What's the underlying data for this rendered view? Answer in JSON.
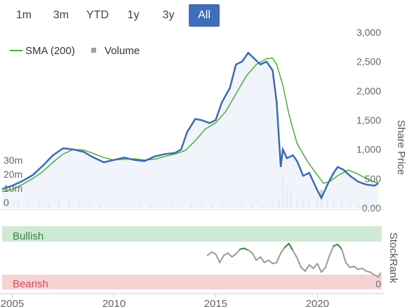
{
  "range_selector": {
    "buttons": [
      {
        "label": "1m",
        "active": false
      },
      {
        "label": "3m",
        "active": false
      },
      {
        "label": "YTD",
        "active": false
      },
      {
        "label": "1y",
        "active": false
      },
      {
        "label": "3y",
        "active": false
      },
      {
        "label": "All",
        "active": true
      }
    ]
  },
  "colors": {
    "price_line": "#3d6bb3",
    "price_fill": "#eef2fa",
    "sma_line": "#4caf3a",
    "volume_bar": "#c8c8c8",
    "bullish_band": "#cfe9d4",
    "bearish_band": "#f5d3d3",
    "rank_line": "#9a9a9a",
    "rank_bullish": "#2e8b3a",
    "accent": "#3f6fb8"
  },
  "chart_data": [
    {
      "type": "line",
      "legend": [
        {
          "name": "SMA (200)",
          "icon": "line-swatch"
        },
        {
          "name": "Volume",
          "icon": "square-swatch"
        }
      ],
      "ylabel": "Share Price",
      "y_right_ticks": [
        "3,000",
        "2,500",
        "2,000",
        "1,500",
        "1,000",
        "500",
        "0.00"
      ],
      "y_right_tick_values": [
        3000,
        2500,
        2000,
        1500,
        1000,
        500,
        0
      ],
      "y_left_ticks": [
        "30m",
        "20m",
        "10m",
        "0"
      ],
      "y_left_tick_values": [
        30,
        20,
        10,
        0
      ],
      "ylim": [
        0,
        3000
      ],
      "volume_ylim": [
        0,
        60
      ],
      "xlim": [
        2004.5,
        2023.2
      ],
      "x_ticks": [
        "2005",
        "2010",
        "2015",
        "2020"
      ],
      "x_tick_values": [
        2005,
        2010,
        2015,
        2020
      ],
      "series": [
        {
          "name": "Price",
          "x": [
            2004.5,
            2005.0,
            2005.5,
            2006.0,
            2006.5,
            2007.0,
            2007.5,
            2008.0,
            2008.5,
            2009.0,
            2009.5,
            2010.0,
            2010.5,
            2011.0,
            2011.5,
            2012.0,
            2012.5,
            2013.0,
            2013.3,
            2013.6,
            2014.0,
            2014.3,
            2014.7,
            2015.0,
            2015.3,
            2015.7,
            2016.0,
            2016.3,
            2016.6,
            2016.9,
            2017.2,
            2017.5,
            2017.8,
            2018.0,
            2018.2,
            2018.3,
            2018.5,
            2018.8,
            2019.0,
            2019.3,
            2019.6,
            2019.8,
            2020.0,
            2020.2,
            2020.5,
            2020.8,
            2021.0,
            2021.3,
            2021.6,
            2022.0,
            2022.4,
            2022.8,
            2023.0
          ],
          "y": [
            320,
            380,
            460,
            560,
            720,
            900,
            1020,
            1000,
            960,
            860,
            780,
            820,
            860,
            820,
            800,
            880,
            920,
            940,
            1000,
            1300,
            1520,
            1500,
            1450,
            1500,
            1800,
            2050,
            2450,
            2500,
            2650,
            2550,
            2450,
            2500,
            2350,
            1800,
            700,
            1000,
            850,
            900,
            800,
            550,
            600,
            450,
            300,
            170,
            400,
            600,
            700,
            650,
            550,
            450,
            400,
            380,
            420
          ]
        },
        {
          "name": "SMA (200)",
          "x": [
            2004.5,
            2005.0,
            2005.5,
            2006.0,
            2006.5,
            2007.0,
            2007.5,
            2008.0,
            2008.5,
            2009.0,
            2009.5,
            2010.0,
            2010.5,
            2011.0,
            2011.5,
            2012.0,
            2012.5,
            2013.0,
            2013.5,
            2014.0,
            2014.5,
            2015.0,
            2015.5,
            2016.0,
            2016.5,
            2017.0,
            2017.5,
            2017.8,
            2018.0,
            2018.3,
            2018.6,
            2019.0,
            2019.5,
            2020.0,
            2020.3,
            2020.6,
            2021.0,
            2021.5,
            2022.0,
            2022.5,
            2023.0
          ],
          "y": [
            280,
            320,
            400,
            500,
            620,
            780,
            920,
            1000,
            990,
            930,
            860,
            820,
            830,
            840,
            820,
            830,
            880,
            920,
            980,
            1150,
            1350,
            1450,
            1650,
            1950,
            2250,
            2450,
            2550,
            2560,
            2450,
            2100,
            1600,
            1100,
            800,
            560,
            420,
            450,
            550,
            650,
            580,
            480,
            420
          ]
        },
        {
          "name": "Volume",
          "type": "bar",
          "x": [
            2004.8,
            2005.3,
            2005.8,
            2006.3,
            2006.8,
            2007.3,
            2007.8,
            2008.3,
            2008.8,
            2009.3,
            2009.8,
            2010.3,
            2010.8,
            2011.3,
            2011.8,
            2012.3,
            2012.8,
            2013.3,
            2013.8,
            2014.3,
            2014.8,
            2015.3,
            2015.8,
            2016.3,
            2016.8,
            2017.3,
            2017.8,
            2018.1,
            2018.3,
            2018.5,
            2018.7,
            2019.0,
            2019.3,
            2019.6,
            2020.0,
            2020.2,
            2020.5,
            2020.8,
            2021.2,
            2021.6,
            2022.0,
            2022.5,
            2022.9
          ],
          "y": [
            4,
            5,
            3,
            4,
            3,
            5,
            4,
            6,
            4,
            3,
            2,
            3,
            2,
            3,
            2,
            2,
            3,
            2,
            3,
            4,
            3,
            3,
            2,
            3,
            3,
            2,
            4,
            6,
            22,
            16,
            12,
            8,
            6,
            5,
            9,
            13,
            6,
            5,
            4,
            3,
            3,
            2,
            2
          ]
        }
      ]
    },
    {
      "type": "line",
      "ylabel": "StockRank",
      "bands": [
        {
          "name": "Bullish"
        },
        {
          "name": "Bearish"
        }
      ],
      "y_right_ticks": [
        "0"
      ],
      "y_right_tick_values": [
        0
      ],
      "ylim": [
        0,
        100
      ],
      "xlim": [
        2004.5,
        2023.2
      ],
      "series": [
        {
          "name": "StockRank",
          "x": [
            2014.6,
            2014.8,
            2015.0,
            2015.2,
            2015.4,
            2015.6,
            2015.8,
            2016.0,
            2016.2,
            2016.4,
            2016.6,
            2016.8,
            2017.0,
            2017.2,
            2017.4,
            2017.6,
            2017.8,
            2018.0,
            2018.2,
            2018.4,
            2018.6,
            2018.8,
            2019.0,
            2019.2,
            2019.4,
            2019.6,
            2019.8,
            2020.0,
            2020.2,
            2020.4,
            2020.6,
            2020.8,
            2021.0,
            2021.2,
            2021.4,
            2021.6,
            2021.8,
            2022.0,
            2022.2,
            2022.4,
            2022.6,
            2022.8,
            2023.0,
            2023.1
          ],
          "y": [
            55,
            62,
            58,
            40,
            55,
            60,
            52,
            58,
            68,
            70,
            66,
            60,
            45,
            52,
            40,
            45,
            38,
            40,
            60,
            72,
            80,
            65,
            50,
            30,
            22,
            35,
            28,
            38,
            20,
            30,
            55,
            75,
            78,
            68,
            40,
            30,
            32,
            26,
            28,
            22,
            20,
            14,
            10,
            18
          ]
        }
      ]
    }
  ]
}
